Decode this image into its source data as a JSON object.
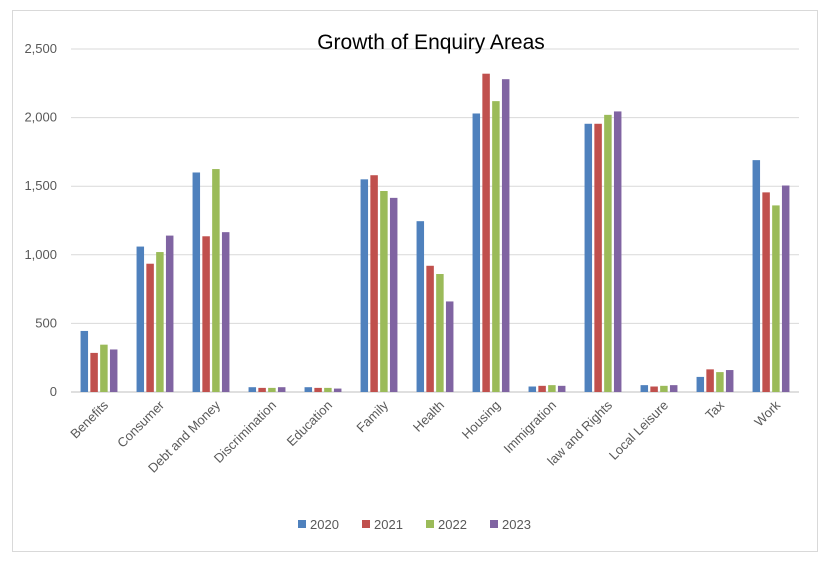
{
  "chart_data": {
    "type": "bar",
    "title": "Growth of Enquiry Areas",
    "xlabel": "",
    "ylabel": "",
    "ylim": [
      0,
      2500
    ],
    "yticks": [
      0,
      500,
      1000,
      1500,
      2000,
      2500
    ],
    "ytick_labels": [
      "0",
      "500",
      "1,000",
      "1,500",
      "2,000",
      "2,500"
    ],
    "grid": true,
    "legend_position": "bottom",
    "categories": [
      "Benefits",
      "Consumer",
      "Debt and Money",
      "Discrimination",
      "Education",
      "Family",
      "Health",
      "Housing",
      "Immigration",
      "law and Rights",
      "Local Leisure",
      "Tax",
      "Work"
    ],
    "series": [
      {
        "name": "2020",
        "color": "#4f81bd",
        "values": [
          445,
          1060,
          1600,
          35,
          35,
          1550,
          1245,
          2030,
          40,
          1955,
          50,
          110,
          1690
        ]
      },
      {
        "name": "2021",
        "color": "#c0504d",
        "values": [
          285,
          935,
          1135,
          30,
          30,
          1580,
          920,
          2320,
          45,
          1955,
          40,
          165,
          1455
        ]
      },
      {
        "name": "2022",
        "color": "#9bbb59",
        "values": [
          345,
          1020,
          1625,
          30,
          30,
          1465,
          860,
          2120,
          50,
          2020,
          45,
          145,
          1360
        ]
      },
      {
        "name": "2023",
        "color": "#8064a2",
        "values": [
          310,
          1140,
          1165,
          35,
          25,
          1415,
          660,
          2280,
          45,
          2045,
          50,
          160,
          1505
        ]
      }
    ]
  }
}
